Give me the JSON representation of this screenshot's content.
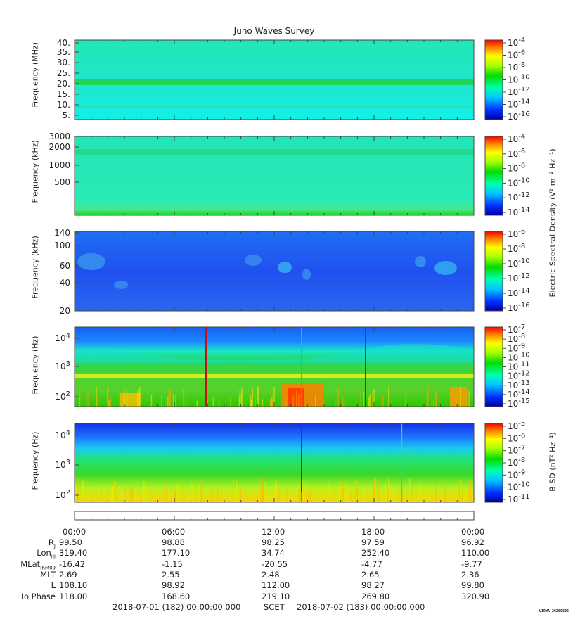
{
  "title": "Juno Waves Survey",
  "colors": {
    "e_bg1": "#1fe8d6",
    "e_bg2": "#2a6ff0",
    "b_bg": "#33cc33"
  },
  "chart_data": [
    {
      "type": "heatmap",
      "panel": "1",
      "ylabel": "Frequency (MHz)",
      "yticks": [
        "40.",
        "35.",
        "30.",
        "25.",
        "20.",
        "15.",
        "10.",
        "5."
      ],
      "colorbar_ticks": [
        "10-4",
        "10-6",
        "10-8",
        "10-10",
        "10-12",
        "10-14",
        "10-16"
      ]
    },
    {
      "type": "heatmap",
      "panel": "2",
      "ylabel": "Frequency (kHz)",
      "yticks": [
        "3000",
        "2000",
        "1000",
        "500"
      ],
      "colorbar_ticks": [
        "10-4",
        "10-6",
        "10-8",
        "10-10",
        "10-12",
        "10-14"
      ]
    },
    {
      "type": "heatmap",
      "panel": "3",
      "ylabel": "Frequency (kHz)",
      "yticks": [
        "140",
        "100",
        "60",
        "40",
        "20"
      ],
      "colorbar_ticks": [
        "10-6",
        "10-8",
        "10-10",
        "10-12",
        "10-14",
        "10-16"
      ]
    },
    {
      "type": "heatmap",
      "panel": "4",
      "ylabel": "Frequency (Hz)",
      "yticks": [
        "10^4",
        "10^3",
        "10^2"
      ],
      "colorbar_ticks": [
        "10-7",
        "10-8",
        "10-9",
        "10-10",
        "10-11",
        "10-12",
        "10-13",
        "10-14",
        "10-15"
      ]
    },
    {
      "type": "heatmap",
      "panel": "5",
      "ylabel": "Frequency (Hz)",
      "yticks": [
        "10^4",
        "10^3",
        "10^2"
      ],
      "colorbar_ticks": [
        "10-5",
        "10-6",
        "10-7",
        "10-8",
        "10-9",
        "10-10",
        "10-11"
      ]
    }
  ],
  "colorbar_labels": {
    "electric": "Electric Spectral Density (V² m⁻² Hz⁻¹)",
    "magnetic": "B SD (nT² Hz⁻¹)"
  },
  "time_ticks": [
    "00:00",
    "06:00",
    "12:00",
    "18:00",
    "00:00"
  ],
  "ephemeris": [
    {
      "label": "RJ",
      "values": [
        "99.50",
        "98.88",
        "98.25",
        "97.59",
        "96.92"
      ]
    },
    {
      "label": "LonIII",
      "values": [
        "319.40",
        "177.10",
        "34.74",
        "252.40",
        "110.00"
      ]
    },
    {
      "label": "MLatJRM09",
      "values": [
        "-16.42",
        "-1.15",
        "-20.55",
        "-4.77",
        "-9.77"
      ]
    },
    {
      "label": "MLT",
      "values": [
        "2.69",
        "2.55",
        "2.48",
        "2.65",
        "2.36"
      ]
    },
    {
      "label": "L",
      "values": [
        "108.10",
        "98.92",
        "112.00",
        "98.27",
        "99.80"
      ]
    },
    {
      "label": "Io Phase",
      "values": [
        "118.00",
        "168.60",
        "219.10",
        "269.80",
        "320.90"
      ]
    }
  ],
  "footer": {
    "start": "2018-07-01 (182) 00:00:00.000",
    "scet": "SCET",
    "end": "2018-07-02 (183) 00:00:00.000"
  },
  "signature": "UIOWA 20200306"
}
